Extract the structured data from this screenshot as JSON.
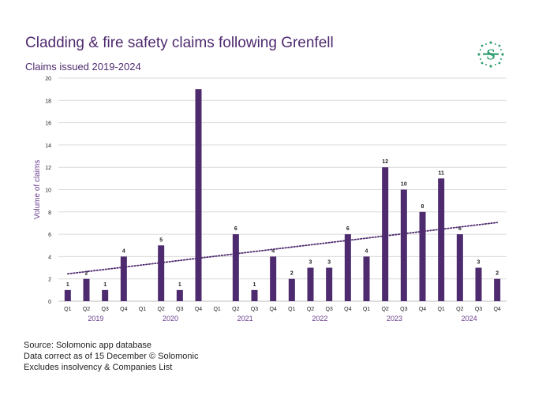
{
  "header": {
    "title": "Cladding & fire safety claims following Grenfell",
    "subtitle": "Claims issued 2019-2024"
  },
  "logo": {
    "icon": "solomonic-s-logo-icon",
    "color": "#2e9e6e"
  },
  "colors": {
    "bar": "#4e2a6e",
    "axis_text": "#222222",
    "year_text": "#6b3f8f",
    "grid": "#d9d9d9"
  },
  "footer": {
    "lines": [
      "Source: Solomonic app database",
      "Data correct as of 15 December © Solomonic",
      "Excludes insolvency & Companies List"
    ]
  },
  "chart_data": {
    "type": "bar",
    "ylabel": "Volume of claims",
    "ylim": [
      0,
      20
    ],
    "yticks": [
      0,
      2,
      4,
      6,
      8,
      10,
      12,
      14,
      16,
      18,
      20
    ],
    "grid": true,
    "categories": [
      "Q1",
      "Q2",
      "Q3",
      "Q4",
      "Q1",
      "Q2",
      "Q3",
      "Q4",
      "Q1",
      "Q2",
      "Q3",
      "Q4",
      "Q1",
      "Q2",
      "Q3",
      "Q4",
      "Q1",
      "Q2",
      "Q3",
      "Q4",
      "Q1",
      "Q2",
      "Q3",
      "Q4"
    ],
    "years": [
      "2019",
      "2020",
      "2021",
      "2022",
      "2023",
      "2024"
    ],
    "values": [
      1,
      2,
      1,
      4,
      null,
      5,
      1,
      19,
      null,
      6,
      1,
      4,
      2,
      3,
      3,
      6,
      4,
      12,
      10,
      8,
      11,
      6,
      3,
      2
    ],
    "data_labels": [
      "1",
      "2",
      "1",
      "4",
      "",
      "5",
      "1",
      "",
      "",
      "6",
      "1",
      "4",
      "2",
      "3",
      "3",
      "6",
      "4",
      "12",
      "10",
      "8",
      "11",
      "6",
      "3",
      "2"
    ],
    "trendline": {
      "style": "dotted",
      "linear": true
    }
  }
}
